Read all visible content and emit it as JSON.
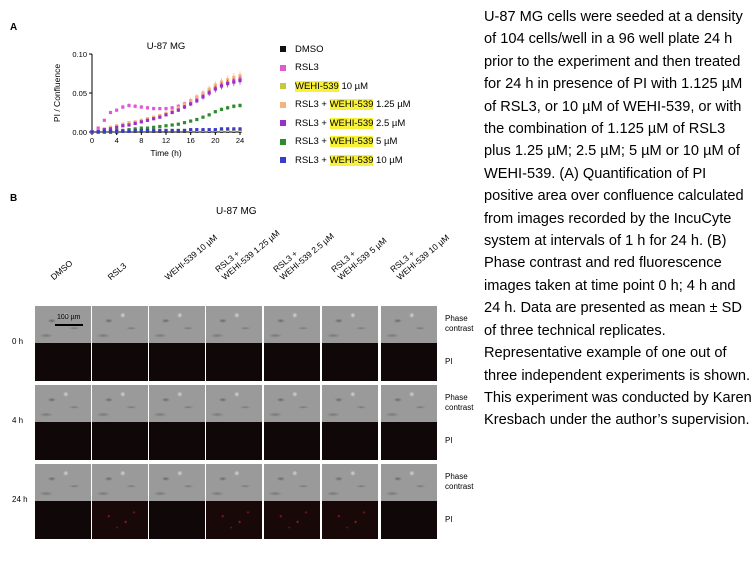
{
  "panel_a": {
    "letter": "A"
  },
  "panel_b": {
    "letter": "B",
    "title": "U-87 MG"
  },
  "legend": [
    {
      "pre": "DMSO",
      "hl": "",
      "post": "",
      "color": "#111111"
    },
    {
      "pre": "RSL3",
      "hl": "",
      "post": "",
      "color": "#e05ad6"
    },
    {
      "pre": "",
      "hl": "WEHI-539",
      "post": " 10 µM",
      "color": "#c7c83a"
    },
    {
      "pre": "RSL3 + ",
      "hl": "WEHI-539",
      "post": " 1.25 µM",
      "color": "#f5b37c"
    },
    {
      "pre": "RSL3 + ",
      "hl": "WEHI-539",
      "post": " 2.5 µM",
      "color": "#9b2ec4"
    },
    {
      "pre": "RSL3 + ",
      "hl": "WEHI-539",
      "post": " 5 µM",
      "color": "#2e8b2e"
    },
    {
      "pre": "RSL3 + ",
      "hl": "WEHI-539",
      "post": " 10 µM",
      "color": "#3a3acf"
    }
  ],
  "chart_data": {
    "type": "line",
    "title": "U-87 MG",
    "xlabel": "Time (h)",
    "ylabel": "PI / Confluence",
    "xlim": [
      0,
      24
    ],
    "ylim": [
      0,
      0.1
    ],
    "xticks": [
      0,
      4,
      8,
      12,
      16,
      20,
      24
    ],
    "yticks": [
      0.0,
      0.05,
      0.1
    ],
    "ytick_labels": [
      "0.00",
      "0.05",
      "0.10"
    ],
    "x": [
      0,
      1,
      2,
      3,
      4,
      5,
      6,
      7,
      8,
      9,
      10,
      11,
      12,
      13,
      14,
      15,
      16,
      17,
      18,
      19,
      20,
      21,
      22,
      23,
      24
    ],
    "series": [
      {
        "name": "DMSO",
        "color": "#111111",
        "values": [
          0.0,
          0.0,
          0.0,
          0.0,
          0.0,
          0.001,
          0.001,
          0.001,
          0.001,
          0.001,
          0.001,
          0.001,
          0.001,
          0.001,
          0.001,
          0.001,
          0.001,
          0.001,
          0.001,
          0.001,
          0.001,
          0.001,
          0.001,
          0.001,
          0.001
        ]
      },
      {
        "name": "RSL3",
        "color": "#e05ad6",
        "values": [
          0.0,
          0.005,
          0.015,
          0.025,
          0.028,
          0.032,
          0.034,
          0.033,
          0.032,
          0.031,
          0.03,
          0.03,
          0.03,
          0.031,
          0.033,
          0.036,
          0.04,
          0.044,
          0.048,
          0.053,
          0.058,
          0.061,
          0.063,
          0.066,
          0.068
        ]
      },
      {
        "name": "WEHI-539 10 µM",
        "color": "#c7c83a",
        "values": [
          0.0,
          0.001,
          0.001,
          0.001,
          0.001,
          0.002,
          0.002,
          0.002,
          0.002,
          0.002,
          0.002,
          0.002,
          0.002,
          0.002,
          0.002,
          0.002,
          0.002,
          0.002,
          0.002,
          0.002,
          0.002,
          0.002,
          0.002,
          0.002,
          0.002
        ]
      },
      {
        "name": "RSL3 + WEHI-539 1.25 µM",
        "color": "#f5b37c",
        "values": [
          0.0,
          0.002,
          0.004,
          0.006,
          0.008,
          0.01,
          0.012,
          0.013,
          0.015,
          0.017,
          0.019,
          0.021,
          0.024,
          0.027,
          0.031,
          0.035,
          0.04,
          0.045,
          0.05,
          0.055,
          0.06,
          0.064,
          0.067,
          0.07,
          0.072
        ]
      },
      {
        "name": "RSL3 + WEHI-539 2.5 µM",
        "color": "#9b2ec4",
        "values": [
          0.0,
          0.001,
          0.003,
          0.004,
          0.006,
          0.008,
          0.009,
          0.011,
          0.013,
          0.015,
          0.017,
          0.019,
          0.022,
          0.025,
          0.028,
          0.032,
          0.036,
          0.04,
          0.045,
          0.05,
          0.055,
          0.059,
          0.062,
          0.064,
          0.066
        ]
      },
      {
        "name": "RSL3 + WEHI-539 5 µM",
        "color": "#2e8b2e",
        "values": [
          0.0,
          0.0,
          0.001,
          0.001,
          0.002,
          0.002,
          0.003,
          0.004,
          0.005,
          0.005,
          0.006,
          0.007,
          0.008,
          0.009,
          0.01,
          0.012,
          0.014,
          0.016,
          0.019,
          0.022,
          0.026,
          0.029,
          0.031,
          0.033,
          0.034
        ]
      },
      {
        "name": "RSL3 + WEHI-539 10 µM",
        "color": "#3a3acf",
        "values": [
          0.0,
          0.0,
          0.001,
          0.001,
          0.001,
          0.001,
          0.001,
          0.002,
          0.002,
          0.002,
          0.002,
          0.002,
          0.002,
          0.002,
          0.002,
          0.002,
          0.003,
          0.003,
          0.003,
          0.003,
          0.003,
          0.004,
          0.004,
          0.004,
          0.004
        ]
      }
    ]
  },
  "columns": [
    "DMSO",
    "RSL3",
    "WEHI-539 10 µM",
    "RSL3 +\nWEHI-539 1.25 µM",
    "RSL3 +\nWEHI-539 2.5 µM",
    "RSL3 +\nWEHI-539 5 µM",
    "RSL3 +\nWEHI-539 10 µM"
  ],
  "scale_bar": "100 µm",
  "rows": [
    {
      "time": "0 h"
    },
    {
      "time": "4 h"
    },
    {
      "time": "24 h"
    }
  ],
  "side_labels": {
    "phase": "Phase\ncontrast",
    "pi": "PI"
  },
  "caption": "U-87 MG cells were seeded at a density of 104 cells/well in a 96 well plate 24 h prior to the experiment and then treated for 24 h in presence of PI with 1.125 µM of RSL3, or 10 µM of WEHI-539, or with the combination of 1.125 µM of RSL3 plus 1.25 µM; 2.5 µM; 5 µM or 10 µM of WEHI-539. (A) Quantification of PI positive area over confluence calculated from images recorded by the IncuCyte system at intervals of 1 h for 24 h. (B) Phase contrast and red fluorescence images taken at time point 0 h; 4 h and 24 h. Data are presented as mean ± SD of three technical replicates. Representative example of one out of three independent experiments is shown. This experiment was conducted by Karen Kresbach under the author’s supervision."
}
